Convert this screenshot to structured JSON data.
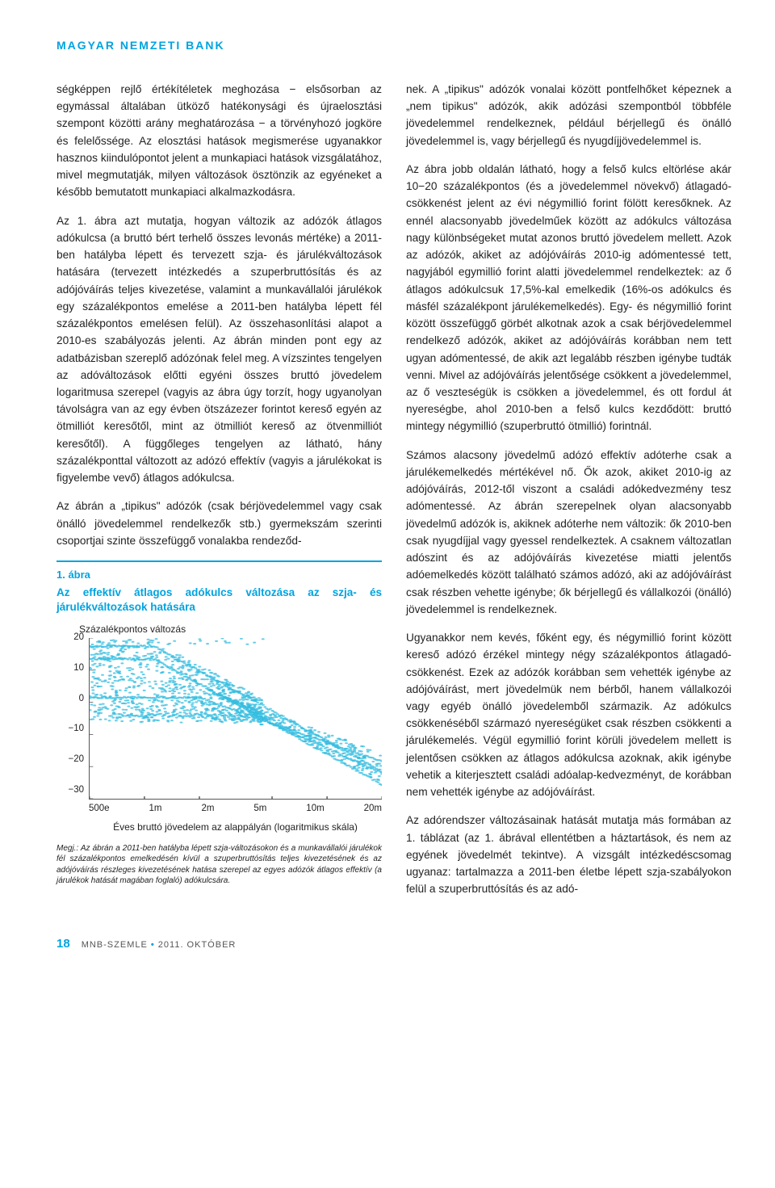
{
  "header": "MAGYAR NEMZETI BANK",
  "left": {
    "p1": "ségképpen rejlő értékítéletek meghozása − elsősorban az egymással általában ütköző hatékonysági és újraelosztási szempont közötti arány meghatározása − a törvényhozó jogköre és felelőssége. Az elosztási hatások megismerése ugyanakkor hasznos kiindulópontot jelent a munkapiaci hatások vizsgálatához, mivel megmutatják, milyen változások ösztönzik az egyéneket a később bemutatott munkapiaci alkalmazkodásra.",
    "p2": "Az 1. ábra azt mutatja, hogyan változik az adózók átlagos adókulcsa (a bruttó bért terhelő összes levonás mértéke) a 2011-ben hatályba lépett és tervezett szja- és járulékváltozások hatására (tervezett intézkedés a szuperbruttósítás és az adójóváírás teljes kivezetése, valamint a munkavállalói járulékok egy százalékpontos emelése a 2011-ben hatályba lépett fél százalékpontos emelésen felül). Az összehasonlítási alapot a 2010-es szabályozás jelenti. Az ábrán minden pont egy az adatbázisban szereplő adózónak felel meg. A vízszintes tengelyen az adóváltozások előtti egyéni összes bruttó jövedelem logaritmusa szerepel (vagyis az ábra úgy torzít, hogy ugyanolyan távolságra van az egy évben ötszázezer forintot kereső egyén az ötmilliót keresőtől, mint az ötmilliót kereső az ötvenmilliót keresőtől). A függőleges tengelyen az látható, hány százalékponttal változott az adózó effektív (vagyis a járulékokat is figyelembe vevő) átlagos adókulcsa.",
    "p3": "Az ábrán a „tipikus\" adózók (csak bérjövedelemmel vagy csak önálló jövedelemmel rendelkezők stb.) gyermekszám szerinti csoportjai szinte összefüggő vonalakba rendeződ-"
  },
  "right": {
    "p1": "nek. A „tipikus\" adózók vonalai között pontfelhőket képeznek a „nem tipikus\" adózók, akik adózási szempontból többféle jövedelemmel rendelkeznek, például bérjellegű és önálló jövedelemmel is, vagy bérjellegű és nyugdíjjövedelemmel is.",
    "p2": "Az ábra jobb oldalán látható, hogy a felső kulcs eltörlése akár 10−20 százalékpontos (és a jövedelemmel növekvő) átlagadó-csökkenést jelent az évi négymillió forint fölött keresőknek. Az ennél alacsonyabb jövedelműek között az adókulcs változása nagy különbségeket mutat azonos bruttó jövedelem mellett. Azok az adózók, akiket az adójóváírás 2010-ig adómentessé tett, nagyjából egymillió forint alatti jövedelemmel rendelkeztek: az ő átlagos adókulcsuk 17,5%-kal emelkedik (16%-os adókulcs és másfél százalékpont járulékemelkedés). Egy- és négymillió forint között összefüggő görbét alkotnak azok a csak bérjövedelemmel rendelkező adózók, akiket az adójóváírás korábban nem tett ugyan adómentessé, de akik azt legalább részben igénybe tudták venni. Mivel az adójóváírás jelentősége csökkent a jövedelemmel, az ő veszteségük is csökken a jövedelemmel, és ott fordul át nyereségbe, ahol 2010-ben a felső kulcs kezdődött: bruttó mintegy négymillió (szuperbruttó ötmillió) forintnál.",
    "p3": "Számos alacsony jövedelmű adózó effektív adóterhe csak a járulékemelkedés mértékével nő. Ők azok, akiket 2010-ig az adójóváírás, 2012-től viszont a családi adókedvezmény tesz adómentessé. Az ábrán szerepelnek olyan alacsonyabb jövedelmű adózók is, akiknek adóterhe nem változik: ők 2010-ben csak nyugdíjjal vagy gyessel rendelkeztek. A csaknem változatlan adószint és az adójóváírás kivezetése miatti jelentős adóemelkedés között található számos adózó, aki az adójóváírást csak részben vehette igénybe; ők bérjellegű és vállalkozói (önálló) jövedelemmel is rendelkeznek.",
    "p4": "Ugyanakkor nem kevés, főként egy, és négymillió forint között kereső adózó érzékel mintegy négy százalékpontos átlagadó-csökkenést. Ezek az adózók korábban sem vehették igénybe az adójóváírást, mert jövedelmük nem bérből, hanem vállalkozói vagy egyéb önálló jövedelemből származik. Az adókulcs csökkenéséből származó nyereségüket csak részben csökkenti a járulékemelés. Végül egymillió forint körüli jövedelem mellett is jelentősen csökken az átlagos adókulcsa azoknak, akik igénybe vehetik a kiterjesztett családi adóalap-kedvezményt, de korábban nem vehették igénybe az adójóváírást.",
    "p5": "Az adórendszer változásainak hatását mutatja más formában az 1. táblázat (az 1. ábrával ellentétben a háztartások, és nem az egyének jövedelmét tekintve). A vizsgált intézkedéscsomag ugyanaz: tartalmazza a 2011-ben életbe lépett szja-szabályokon felül a szuperbruttósítás és az adó-"
  },
  "figure": {
    "caption": "1. ábra",
    "title": "Az effektív átlagos adókulcs változása az szja- és járulékváltozások hatására",
    "ylabel": "Százalékpontos változás",
    "xlabel": "Éves bruttó jövedelem az alappályán (logaritmikus skála)",
    "ylim": [
      -30,
      20
    ],
    "yticks": [
      20,
      10,
      0,
      -10,
      -20,
      -30
    ],
    "xticks": [
      "500e",
      "1m",
      "2m",
      "5m",
      "10m",
      "20m"
    ],
    "point_color": "#35bde0",
    "note": "Megj.: Az ábrán a 2011-ben hatályba lépett szja-változásokon és a munkavállalói járulékok fél százalékpontos emelkedésén kívül a szuperbruttósítás teljes kivezetésének és az adójóváírás részleges kivezetésének hatása szerepel az egyes adózók átlagos effektív (a járulékok hatását magában foglaló) adókulcsára."
  },
  "footer": {
    "page": "18",
    "text": "MNB-SZEMLE • 2011. OKTÓBER"
  }
}
